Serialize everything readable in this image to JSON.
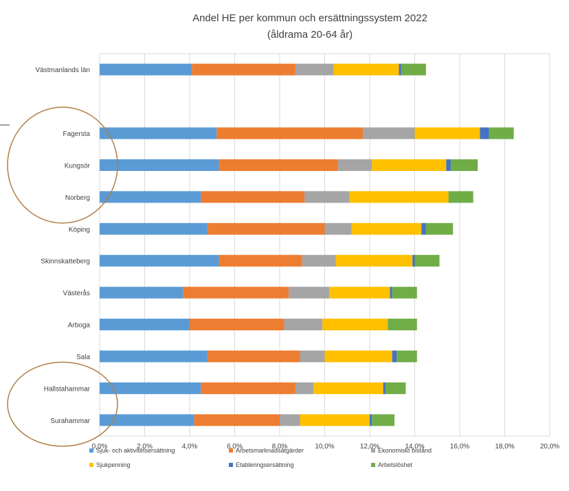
{
  "chart_data": {
    "type": "bar",
    "orientation": "horizontal",
    "stacked": true,
    "title": "Andel HE per kommun och ersättningssystem 2022",
    "subtitle": "(åldrama 20-64 år)",
    "categories": [
      "Västmanlands län",
      "",
      "Fagersta",
      "Kungsör",
      "Norberg",
      "Köping",
      "Skinnskatteberg",
      "Västerås",
      "Arboga",
      "Sala",
      "Hallstahammar",
      "Surahammar"
    ],
    "xlim": [
      0,
      20
    ],
    "x_ticks": [
      "0,0%",
      "2,0%",
      "4,0%",
      "6,0%",
      "8,0%",
      "10,0%",
      "12,0%",
      "14,0%",
      "16,0%",
      "18,0%",
      "20,0%"
    ],
    "grid": "vertical",
    "legend_position": "bottom",
    "series": [
      {
        "name": "Sjuk- och aktivitetsersättning",
        "color": "#5b9bd5",
        "values": [
          4.1,
          null,
          5.2,
          5.3,
          4.5,
          4.8,
          5.3,
          3.7,
          4.0,
          4.8,
          4.5,
          4.2
        ]
      },
      {
        "name": "Arbetsmarknadsåtgärder",
        "color": "#ed7d31",
        "values": [
          4.6,
          null,
          6.5,
          5.3,
          4.6,
          5.2,
          3.7,
          4.7,
          4.2,
          4.1,
          4.2,
          3.8
        ]
      },
      {
        "name": "Ekonomiskt bistånd",
        "color": "#a5a5a5",
        "values": [
          1.7,
          null,
          2.3,
          1.5,
          2.0,
          1.2,
          1.5,
          1.8,
          1.7,
          1.1,
          0.8,
          0.9
        ]
      },
      {
        "name": "Sjukpenning",
        "color": "#ffc000",
        "values": [
          2.9,
          null,
          2.9,
          3.3,
          4.4,
          3.1,
          3.4,
          2.7,
          2.9,
          3.0,
          3.1,
          3.1
        ]
      },
      {
        "name": "Etableringsersättning",
        "color": "#4472c4",
        "values": [
          0.1,
          null,
          0.4,
          0.2,
          0.0,
          0.2,
          0.1,
          0.1,
          0.0,
          0.2,
          0.1,
          0.1
        ]
      },
      {
        "name": "Arbetslöshet",
        "color": "#70ad47",
        "values": [
          1.1,
          null,
          1.1,
          1.2,
          1.1,
          1.2,
          1.1,
          1.1,
          1.3,
          0.9,
          0.9,
          1.0
        ]
      }
    ],
    "annotations": [
      {
        "shape": "circle",
        "encloses": [
          "Fagersta",
          "Kungsör",
          "Norberg"
        ],
        "color": "#b07d45"
      },
      {
        "shape": "circle",
        "encloses": [
          "Hallstahammar",
          "Surahammar"
        ],
        "color": "#b07d45"
      }
    ]
  }
}
